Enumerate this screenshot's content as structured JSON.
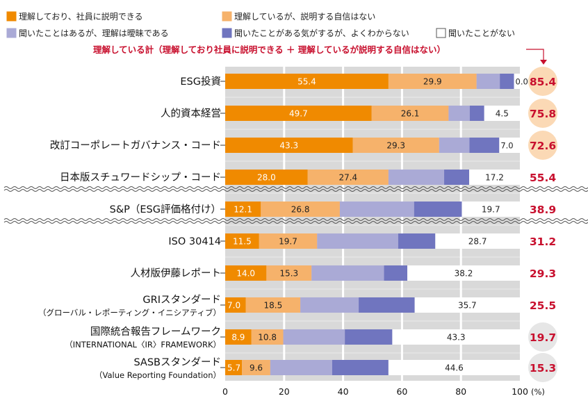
{
  "chart_data": {
    "type": "bar",
    "orientation": "horizontal",
    "stacked": true,
    "legend": [
      {
        "name": "理解しており、社員に説明できる",
        "color": "#f08a00"
      },
      {
        "name": "理解しているが、説明する自信はない",
        "color": "#f6b26b"
      },
      {
        "name": "聞いたことはあるが、理解は曖昧である",
        "color": "#aaaad6"
      },
      {
        "name": "聞いたことがある気がするが、よくわからない",
        "color": "#7075bf"
      },
      {
        "name": "聞いたことがない",
        "color": "#ffffff"
      }
    ],
    "total_note": "理解している計（理解しており社員に説明できる ＋ 理解しているが説明する自信はない）",
    "categories": [
      {
        "label": "ESG投資",
        "sub": "",
        "values": [
          55.4,
          29.9,
          7.9,
          4.8,
          0.0
        ],
        "labels": [
          "55.4",
          "29.9",
          "",
          "",
          "0.0"
        ],
        "total": "85.4",
        "highlight": true
      },
      {
        "label": "人的資本経営",
        "sub": "",
        "values": [
          49.7,
          26.1,
          7.2,
          4.9,
          4.5
        ],
        "labels": [
          "49.7",
          "26.1",
          "",
          "",
          "4.5"
        ],
        "total": "75.8",
        "highlight": true
      },
      {
        "label": "改訂コーポレートガバナンス・コード",
        "sub": "",
        "values": [
          43.3,
          29.3,
          10.3,
          10.1,
          7.0
        ],
        "labels": [
          "43.3",
          "29.3",
          "",
          "",
          "7.0"
        ],
        "total": "72.6",
        "highlight": true
      },
      {
        "label": "日本版スチュワードシップ・コード",
        "sub": "",
        "values": [
          28.0,
          27.4,
          18.9,
          8.5,
          17.2
        ],
        "labels": [
          "28.0",
          "27.4",
          "",
          "",
          "17.2"
        ],
        "total": "55.4",
        "highlight": false
      },
      {
        "label": "S&P（ESG評価格付け）",
        "sub": "",
        "values": [
          12.1,
          26.8,
          25.2,
          16.2,
          19.7
        ],
        "labels": [
          "12.1",
          "26.8",
          "",
          "",
          "19.7"
        ],
        "total": "38.9",
        "highlight": false
      },
      {
        "label": "ISO 30414",
        "sub": "",
        "values": [
          11.5,
          19.7,
          27.5,
          12.6,
          28.7
        ],
        "labels": [
          "11.5",
          "19.7",
          "",
          "",
          "28.7"
        ],
        "total": "31.2",
        "highlight": false
      },
      {
        "label": "人材版伊藤レポート",
        "sub": "",
        "values": [
          14.0,
          15.3,
          24.6,
          7.9,
          38.2
        ],
        "labels": [
          "14.0",
          "15.3",
          "",
          "",
          "38.2"
        ],
        "total": "29.3",
        "highlight": false
      },
      {
        "label": "GRIスタンダード",
        "sub": "（グローバル・レポーティング・イニシアティブ）",
        "values": [
          7.0,
          18.5,
          19.8,
          19.0,
          35.7
        ],
        "labels": [
          "7.0",
          "18.5",
          "",
          "",
          "35.7"
        ],
        "total": "25.5",
        "highlight": false
      },
      {
        "label": "国際統合報告フレームワーク",
        "sub": "（INTERNATIONAL〈IR〉FRAMEWORK）",
        "values": [
          8.9,
          10.8,
          20.9,
          16.1,
          43.3
        ],
        "labels": [
          "8.9",
          "10.8",
          "",
          "",
          "43.3"
        ],
        "total": "19.7",
        "highlight": true
      },
      {
        "label": "SASBスタンダード",
        "sub": "（Value Reporting Foundation）",
        "values": [
          5.7,
          9.6,
          21.0,
          19.1,
          44.6
        ],
        "labels": [
          "5.7",
          "9.6",
          "",
          "",
          "44.6"
        ],
        "total": "15.3",
        "highlight": true
      }
    ],
    "x_ticks": [
      "0",
      "20",
      "40",
      "60",
      "80",
      "100"
    ],
    "x_unit": "(%)",
    "xlim": [
      0,
      100
    ]
  }
}
